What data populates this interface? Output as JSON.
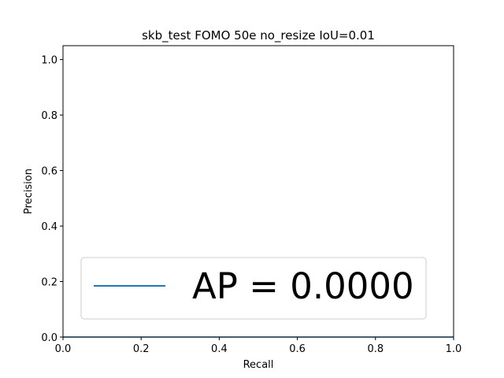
{
  "chart_data": {
    "type": "line",
    "title": "skb_test FOMO 50e no_resize IoU=0.01",
    "xlabel": "Recall",
    "ylabel": "Precision",
    "xlim": [
      0.0,
      1.0
    ],
    "ylim": [
      0.0,
      1.05
    ],
    "x_ticks": [
      "0.0",
      "0.2",
      "0.4",
      "0.6",
      "0.8",
      "1.0"
    ],
    "y_ticks": [
      "0.0",
      "0.2",
      "0.4",
      "0.6",
      "0.8",
      "1.0"
    ],
    "x_tick_values": [
      0.0,
      0.2,
      0.4,
      0.6,
      0.8,
      1.0
    ],
    "y_tick_values": [
      0.0,
      0.2,
      0.4,
      0.6,
      0.8,
      1.0
    ],
    "grid": false,
    "legend_placement": "lower-center",
    "series": [
      {
        "name": "AP = 0.0000",
        "color": "#1f77b4",
        "x": [
          0.0,
          1.0
        ],
        "y": [
          0.0,
          0.0
        ]
      }
    ]
  }
}
